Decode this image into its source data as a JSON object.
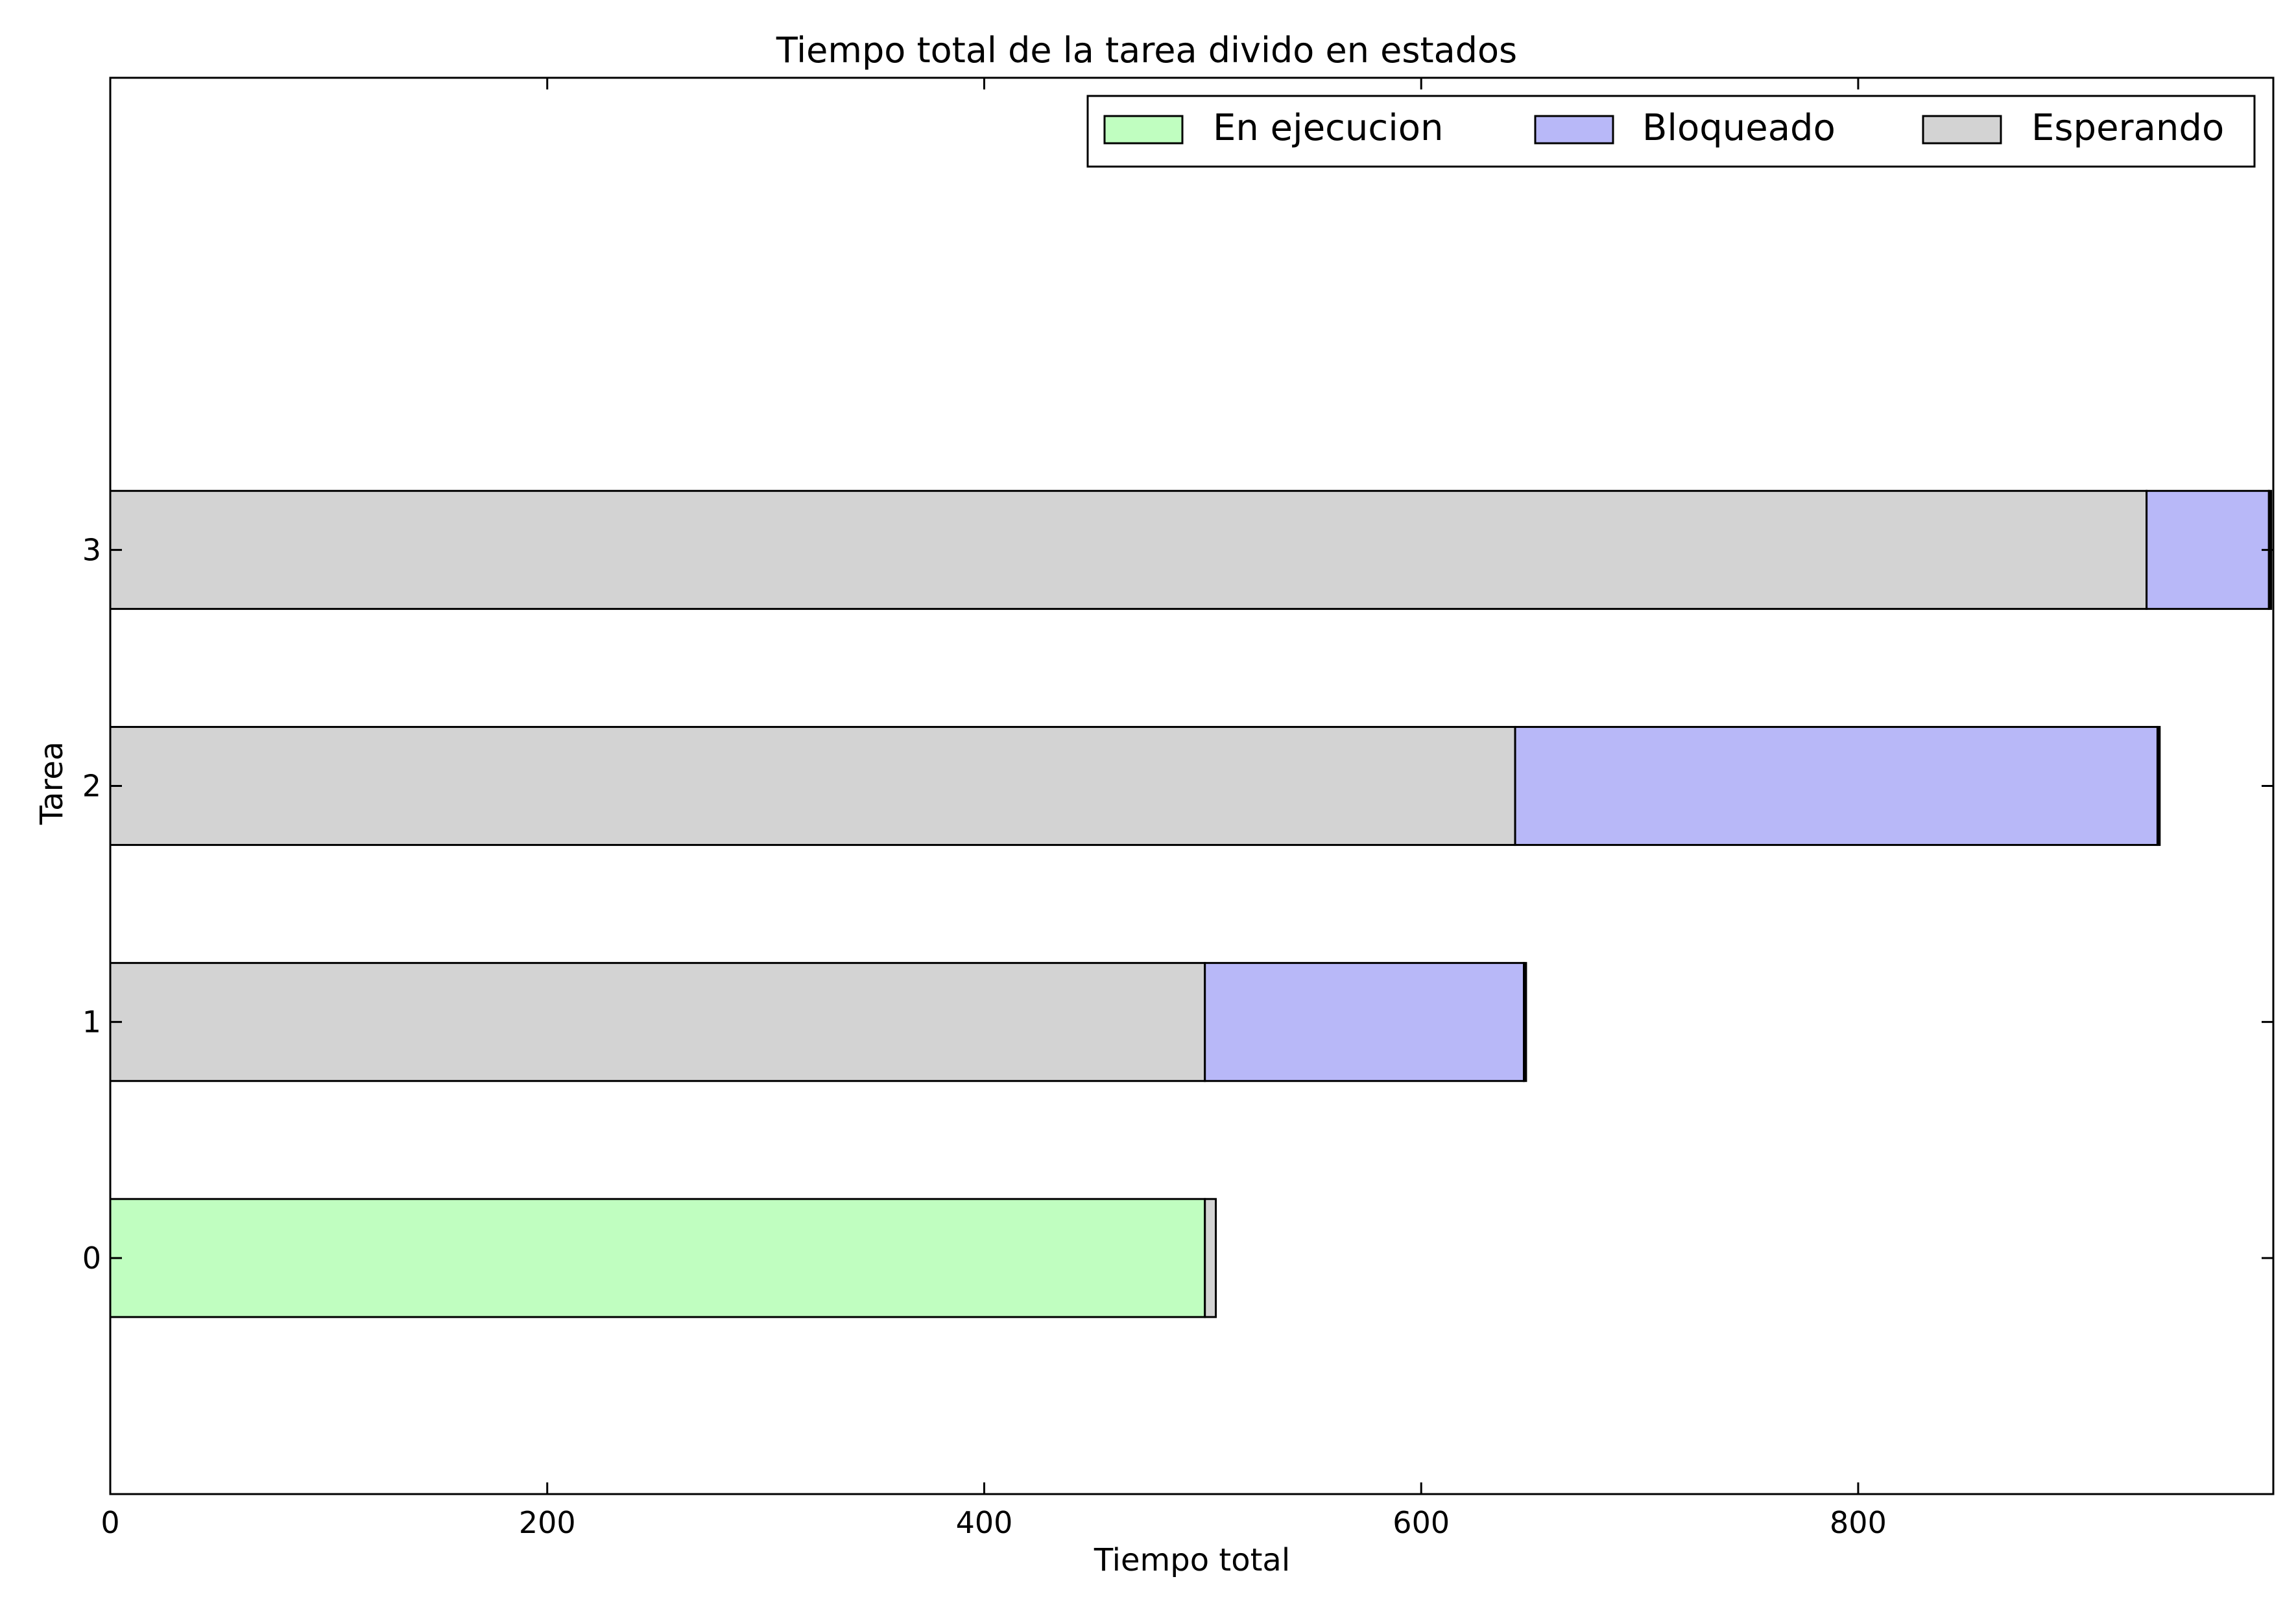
{
  "chart_data": {
    "type": "bar",
    "orientation": "horizontal",
    "stacked": true,
    "title": "Tiempo total de la tarea divido en estados",
    "xlabel": "Tiempo total",
    "ylabel": "Tarea",
    "xlim": [
      0,
      990
    ],
    "ylim": [
      -1,
      5
    ],
    "xticks": [
      0,
      200,
      400,
      600,
      800
    ],
    "yticks": [
      0,
      1,
      2,
      3
    ],
    "tick_labels_x": [
      "0",
      "200",
      "400",
      "600",
      "800"
    ],
    "tick_labels_y": [
      "0",
      "1",
      "2",
      "3"
    ],
    "categories": [
      0,
      1,
      2,
      3
    ],
    "series": [
      {
        "name": "En ejecucion",
        "color": "#c0fec0",
        "values": [
          501,
          0,
          0,
          0
        ]
      },
      {
        "name": "Esperando",
        "color": "#d3d3d3",
        "values": [
          5,
          501,
          643,
          932
        ]
      },
      {
        "name": "Bloqueado",
        "color": "#b8b8f8",
        "values": [
          0,
          146,
          294,
          56
        ]
      },
      {
        "name": "En ejecucion",
        "color": "#000000",
        "values": [
          0,
          1,
          1,
          1
        ]
      }
    ],
    "legend": {
      "position": "top-right",
      "entries": [
        {
          "label": "En ejecucion",
          "color": "#c0fec0"
        },
        {
          "label": "Bloqueado",
          "color": "#b8b8f8"
        },
        {
          "label": "Esperando",
          "color": "#d3d3d3"
        }
      ]
    },
    "grid": false
  }
}
